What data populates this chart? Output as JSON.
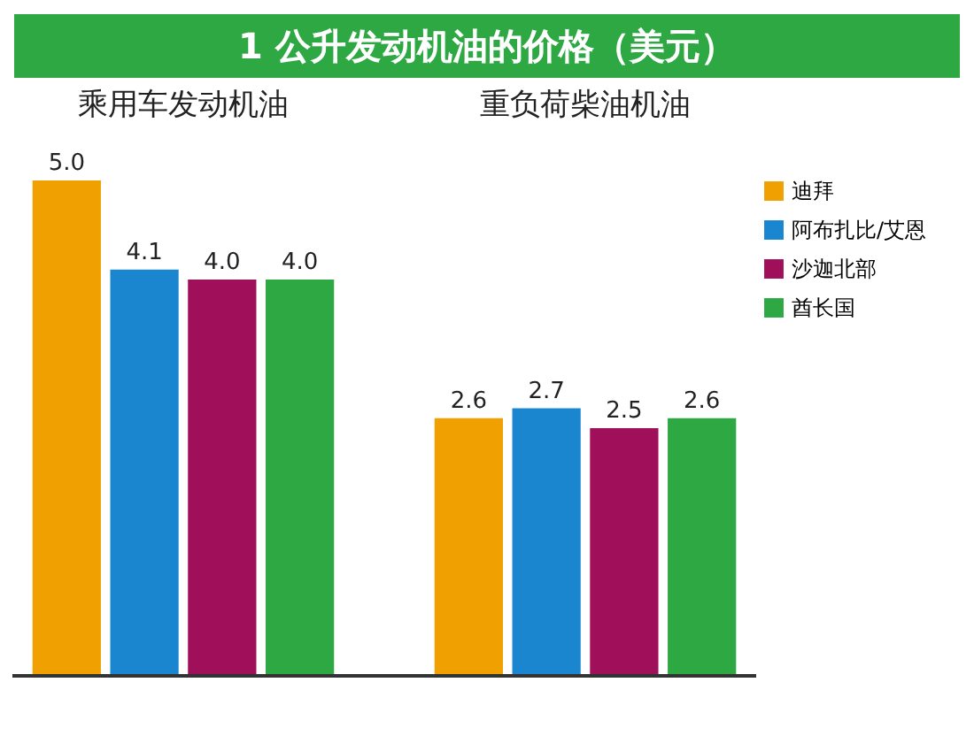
{
  "chart_data": {
    "type": "bar",
    "title": "1 公升发动机油的价格（美元）",
    "categories": [
      "乘用车发动机油",
      "重负荷柴油机油"
    ],
    "series": [
      {
        "name": "迪拜",
        "color": "#f0a000",
        "values": [
          5.0,
          2.6
        ],
        "value_labels": [
          "5.0",
          "2.6"
        ]
      },
      {
        "name": "阿布扎比/艾恩",
        "color": "#1a86d0",
        "values": [
          4.1,
          2.7
        ],
        "value_labels": [
          "4.1",
          "2.7"
        ]
      },
      {
        "name": "沙迦北部",
        "color": "#a0105a",
        "values": [
          4.0,
          2.5
        ],
        "value_labels": [
          "4.0",
          "2.5"
        ]
      },
      {
        "name": "酋长国",
        "color": "#2ea843",
        "values": [
          4.0,
          2.6
        ],
        "value_labels": [
          "4.0",
          "2.6"
        ]
      }
    ],
    "legend": "right",
    "grid": false
  }
}
